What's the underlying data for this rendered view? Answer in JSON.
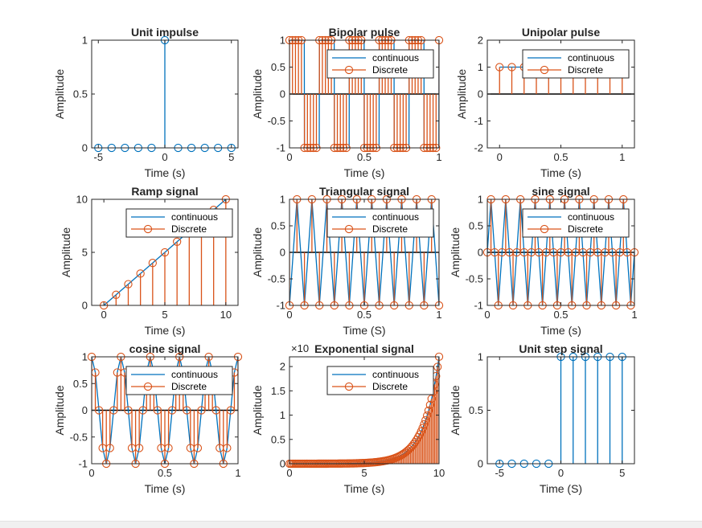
{
  "colors": {
    "continuous": "#0072bd",
    "discrete": "#d95319",
    "axis": "#262626"
  },
  "chart_data": [
    {
      "type": "stem",
      "title": "Unit impulse",
      "xlabel": "Time (s)",
      "ylabel": "Amplitude",
      "xlim": [
        -5.5,
        5.5
      ],
      "ylim": [
        0,
        1
      ],
      "xticks": [
        -5,
        0,
        5
      ],
      "xticklabels": [
        "-5",
        "0",
        "5"
      ],
      "yticks": [
        0,
        0.5,
        1
      ],
      "yticklabels": [
        "0",
        "0.5",
        "1"
      ],
      "legend": null,
      "series": [
        {
          "kind": "stem",
          "color": "blue",
          "x": [
            -5,
            -4,
            -3,
            -2,
            -1,
            0,
            1,
            2,
            3,
            4,
            5
          ],
          "y": [
            0,
            0,
            0,
            0,
            0,
            1,
            0,
            0,
            0,
            0,
            0
          ]
        }
      ]
    },
    {
      "type": "line+stem",
      "title": "Bipolar pulse",
      "xlabel": "Time (s)",
      "ylabel": "Amplitude",
      "xlim": [
        0,
        1
      ],
      "ylim": [
        -1,
        1
      ],
      "xticks": [
        0,
        0.5,
        1
      ],
      "xticklabels": [
        "0",
        "0.5",
        "1"
      ],
      "yticks": [
        -1,
        -0.5,
        0,
        0.5,
        1
      ],
      "yticklabels": [
        "-1",
        "-0.5",
        "0",
        "0.5",
        "1"
      ],
      "legend": {
        "entries": [
          "continuous",
          "Discrete"
        ],
        "location": "top-right"
      },
      "series": [
        {
          "kind": "line",
          "name": "continuous",
          "color": "blue",
          "function": "square",
          "frequency": 5,
          "amplitude": 1,
          "step": 0.001
        },
        {
          "kind": "stem",
          "name": "Discrete",
          "color": "orange",
          "function": "square",
          "frequency": 5,
          "amplitude": 1,
          "step": 0.02
        }
      ]
    },
    {
      "type": "line+stem",
      "title": "Unipolar pulse",
      "xlabel": "Time (s)",
      "ylabel": "Amplitude",
      "xlim": [
        -0.1,
        1.1
      ],
      "ylim": [
        -2,
        2
      ],
      "xticks": [
        0,
        0.5,
        1
      ],
      "xticklabels": [
        "0",
        "0.5",
        "1"
      ],
      "yticks": [
        -2,
        -1,
        0,
        1,
        2
      ],
      "yticklabels": [
        "-2",
        "-1",
        "0",
        "1",
        "2"
      ],
      "legend": {
        "entries": [
          "continuous",
          "Discrete"
        ],
        "location": "top-right"
      },
      "series": [
        {
          "kind": "line",
          "name": "continuous",
          "color": "blue",
          "x": [
            0,
            1
          ],
          "y": [
            1,
            1
          ]
        },
        {
          "kind": "stem",
          "name": "Discrete",
          "color": "orange",
          "x": [
            0,
            0.1,
            0.2,
            0.3,
            0.4,
            0.5,
            0.6,
            0.7,
            0.8,
            0.9,
            1.0
          ],
          "y": [
            1,
            1,
            1,
            1,
            1,
            1,
            1,
            1,
            1,
            1,
            1
          ]
        }
      ]
    },
    {
      "type": "line+stem",
      "title": "Ramp signal",
      "xlabel": "Time (s)",
      "ylabel": "Amplitude",
      "xlim": [
        -1,
        11
      ],
      "ylim": [
        0,
        10
      ],
      "xticks": [
        0,
        5,
        10
      ],
      "xticklabels": [
        "0",
        "5",
        "10"
      ],
      "yticks": [
        0,
        5,
        10
      ],
      "yticklabels": [
        "0",
        "5",
        "10"
      ],
      "legend": {
        "entries": [
          "continuous",
          "Discrete"
        ],
        "location": "top-right"
      },
      "series": [
        {
          "kind": "line",
          "name": "continuous",
          "color": "blue",
          "x": [
            0,
            10
          ],
          "y": [
            0,
            10
          ]
        },
        {
          "kind": "stem",
          "name": "Discrete",
          "color": "orange",
          "x": [
            0,
            1,
            2,
            3,
            4,
            5,
            6,
            7,
            8,
            9,
            10
          ],
          "y": [
            0,
            1,
            2,
            3,
            4,
            5,
            6,
            7,
            8,
            9,
            10
          ]
        }
      ]
    },
    {
      "type": "line+stem",
      "title": "Triangular signal",
      "xlabel": "Time (S)",
      "ylabel": "Amplitude",
      "xlim": [
        0,
        1
      ],
      "ylim": [
        -1,
        1
      ],
      "xticks": [
        0,
        0.5,
        1
      ],
      "xticklabels": [
        "0",
        "0.5",
        "1"
      ],
      "yticks": [
        -1,
        -0.5,
        0,
        0.5,
        1
      ],
      "yticklabels": [
        "-1",
        "-0.5",
        "0",
        "0.5",
        "1"
      ],
      "legend": {
        "entries": [
          "continuous",
          "Discrete"
        ],
        "location": "top-right"
      },
      "series": [
        {
          "kind": "line",
          "name": "continuous",
          "color": "blue",
          "function": "triangle",
          "frequency": 10,
          "amplitude": 1,
          "step": 0.05
        },
        {
          "kind": "stem",
          "name": "Discrete",
          "color": "orange",
          "function": "triangle",
          "frequency": 10,
          "amplitude": 1,
          "step": 0.05
        }
      ]
    },
    {
      "type": "line+stem",
      "title": "sine signal",
      "xlabel": "Time (s)",
      "ylabel": "Amplitude",
      "xlim": [
        0,
        1
      ],
      "ylim": [
        -1,
        1
      ],
      "xticks": [
        0,
        0.5,
        1
      ],
      "xticklabels": [
        "0",
        "0.5",
        "1"
      ],
      "yticks": [
        -1,
        -0.5,
        0,
        0.5,
        1
      ],
      "yticklabels": [
        "-1",
        "-0.5",
        "0",
        "0.5",
        "1"
      ],
      "legend": {
        "entries": [
          "continuous",
          "Discrete"
        ],
        "location": "top-right"
      },
      "series": [
        {
          "kind": "line",
          "name": "continuous",
          "color": "blue",
          "function": "sine",
          "frequency": 10,
          "amplitude": 1,
          "step": 0.025
        },
        {
          "kind": "stem",
          "name": "Discrete",
          "color": "orange",
          "function": "sine",
          "frequency": 10,
          "amplitude": 1,
          "step": 0.025
        }
      ]
    },
    {
      "type": "line+stem",
      "title": "cosine signal",
      "xlabel": "Time (s)",
      "ylabel": "Amplitude",
      "xlim": [
        0,
        1
      ],
      "ylim": [
        -1,
        1
      ],
      "xticks": [
        0,
        0.5,
        1
      ],
      "xticklabels": [
        "0",
        "0.5",
        "1"
      ],
      "yticks": [
        -1,
        -0.5,
        0,
        0.5,
        1
      ],
      "yticklabels": [
        "-1",
        "-0.5",
        "0",
        "0.5",
        "1"
      ],
      "legend": {
        "entries": [
          "continuous",
          "Discrete"
        ],
        "location": "top-right"
      },
      "series": [
        {
          "kind": "line",
          "name": "continuous",
          "color": "blue",
          "function": "cosine",
          "frequency": 5,
          "amplitude": 1,
          "step": 0.025
        },
        {
          "kind": "stem",
          "name": "Discrete",
          "color": "orange",
          "function": "cosine",
          "frequency": 5,
          "amplitude": 1,
          "step": 0.025
        }
      ]
    },
    {
      "type": "line+stem",
      "title": "Exponential signal",
      "xlabel": "Time (s)",
      "ylabel": "Amplitude",
      "xlim": [
        0,
        10
      ],
      "ylim": [
        0,
        22000
      ],
      "xticks": [
        0,
        5,
        10
      ],
      "xticklabels": [
        "0",
        "5",
        "10"
      ],
      "yticks": [
        0,
        5000,
        10000,
        15000,
        20000
      ],
      "yticklabels": [
        "0",
        "0.5",
        "1",
        "1.5",
        "2"
      ],
      "exponent_label": "×10",
      "legend": {
        "entries": [
          "continuous",
          "Discrete"
        ],
        "location": "top-right"
      },
      "series": [
        {
          "kind": "line",
          "name": "continuous",
          "color": "blue",
          "function": "exp",
          "step": 0.1
        },
        {
          "kind": "stem",
          "name": "Discrete",
          "color": "orange",
          "function": "exp",
          "step": 0.1
        }
      ]
    },
    {
      "type": "stem",
      "title": "Unit step signal",
      "xlabel": "Time (S)",
      "ylabel": "Amplitude",
      "xlim": [
        -6,
        6
      ],
      "ylim": [
        0,
        1
      ],
      "xticks": [
        -5,
        0,
        5
      ],
      "xticklabels": [
        "-5",
        "0",
        "5"
      ],
      "yticks": [
        0,
        0.5,
        1
      ],
      "yticklabels": [
        "0",
        "0.5",
        "1"
      ],
      "legend": null,
      "series": [
        {
          "kind": "stem",
          "color": "blue",
          "x": [
            -5,
            -4,
            -3,
            -2,
            -1,
            0,
            1,
            2,
            3,
            4,
            5
          ],
          "y": [
            0,
            0,
            0,
            0,
            0,
            1,
            1,
            1,
            1,
            1,
            1
          ]
        }
      ]
    }
  ]
}
